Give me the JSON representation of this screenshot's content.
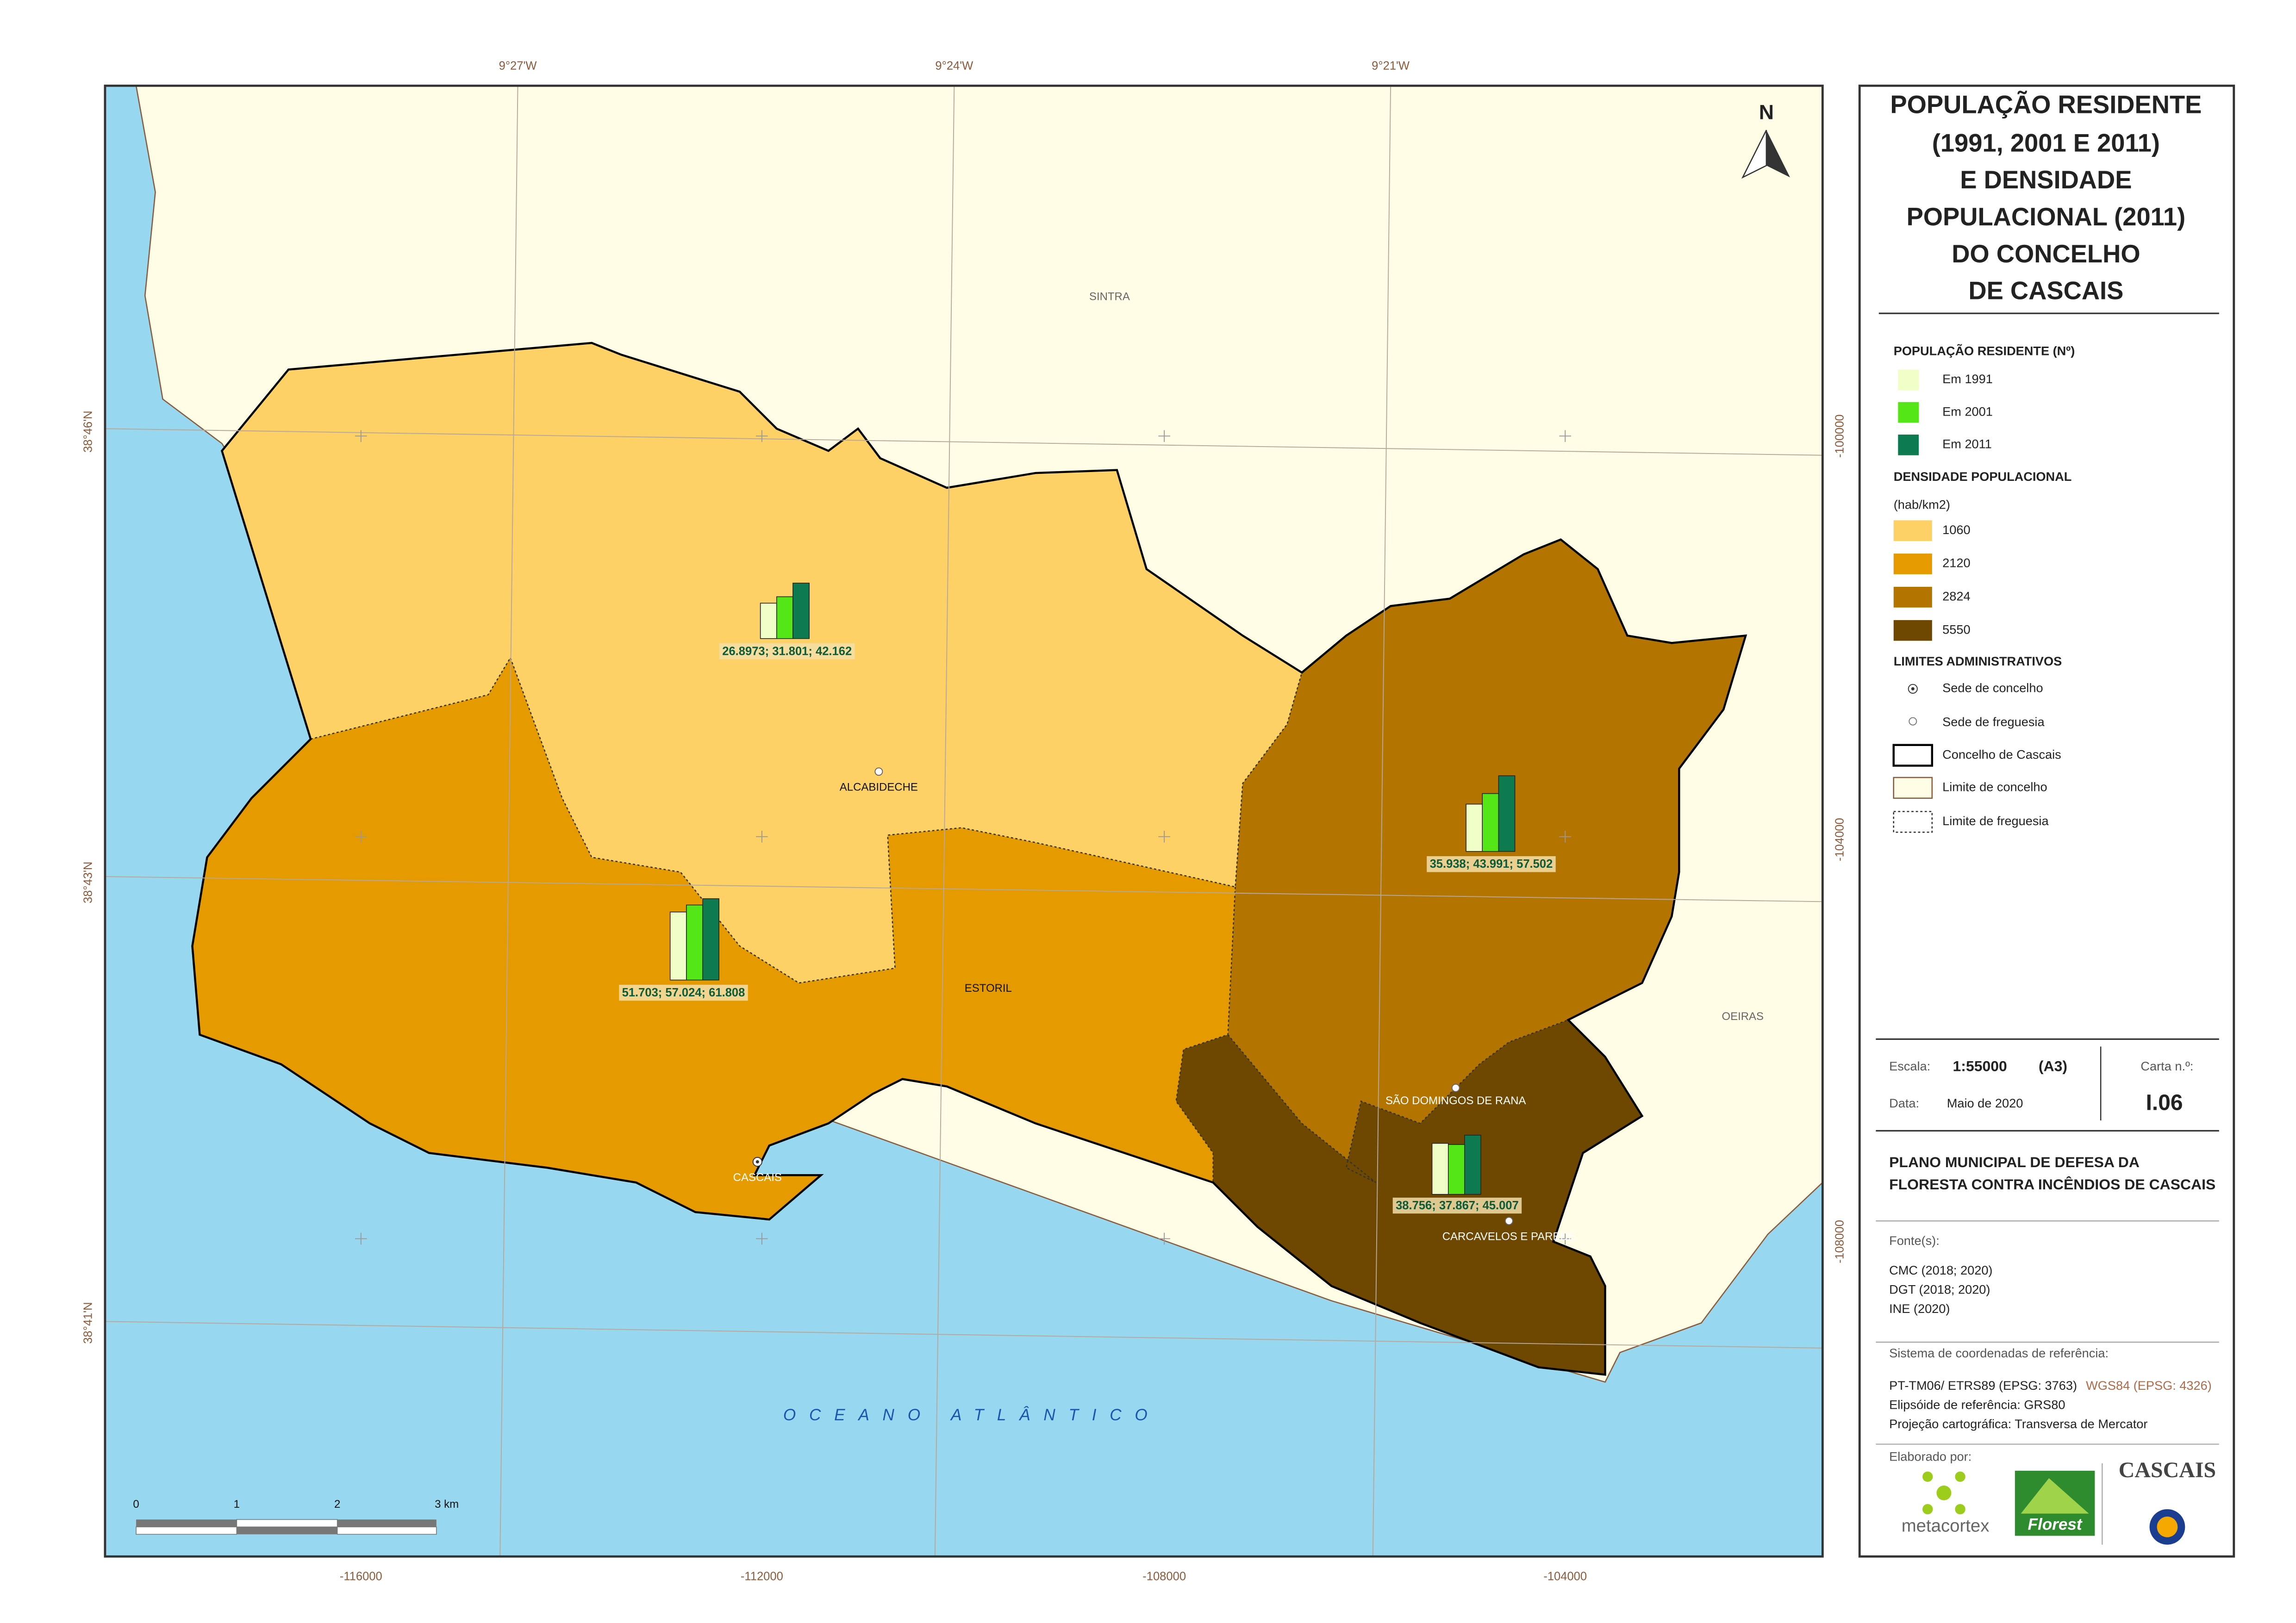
{
  "map": {
    "graticule": {
      "top": [
        "9°27'W",
        "9°24'W",
        "9°21'W"
      ],
      "left": [
        "38°46'N",
        "38°43'N",
        "38°41'N"
      ],
      "bottom": [
        -116000,
        -112000,
        -108000,
        -104000
      ],
      "right": [
        -100000,
        -104000,
        -108000
      ]
    },
    "north": "N",
    "places": {
      "sintra": "SINTRA",
      "oeiras": "OEIRAS",
      "alcabideche": "ALCABIDECHE",
      "estoril": "ESTORIL",
      "cascais": "CASCAIS",
      "sao_domingos": "SÃO DOMINGOS DE RANA",
      "carcavelos": "CARCAVELOS E PAREDE"
    },
    "sea_label": "OCEANO ATLÂNTICO",
    "scale_bar": [
      "0",
      "1",
      "2",
      "3 km"
    ],
    "charts": [
      {
        "values": [
          26.8973,
          31.801,
          42.162
        ],
        "label": "26.8973; 31.801; 42.162"
      },
      {
        "values": [
          51.703,
          57.024,
          61.808
        ],
        "label": "51.703; 57.024; 61.808"
      },
      {
        "values": [
          35.938,
          43.991,
          57.502
        ],
        "label": "35.938; 43.991; 57.502"
      },
      {
        "values": [
          38.756,
          37.867,
          45.007
        ],
        "label": "38.756; 37.867; 45.007"
      }
    ]
  },
  "legend": {
    "title": [
      "POPULAÇÃO RESIDENTE",
      "(1991, 2001 E 2011)",
      "E DENSIDADE",
      "POPULACIONAL (2011)",
      "DO CONCELHO",
      "DE CASCAIS"
    ],
    "population": {
      "heading": "POPULAÇÃO RESIDENTE (Nº)",
      "series": [
        {
          "name": "Em 1991",
          "color": "#f0ffc8"
        },
        {
          "name": "Em 2001",
          "color": "#55e617"
        },
        {
          "name": "Em 2011",
          "color": "#0d7a4f"
        }
      ]
    },
    "density": {
      "heading": "DENSIDADE POPULACIONAL",
      "unit": "(hab/km2)",
      "classes": [
        {
          "value": 1060,
          "color": "#fdd166"
        },
        {
          "value": 2120,
          "color": "#e59a00"
        },
        {
          "value": 2824,
          "color": "#b47400"
        },
        {
          "value": 5550,
          "color": "#6f4800"
        }
      ]
    },
    "limits": {
      "heading": "LIMITES ADMINISTRATIVOS",
      "items": [
        "Sede de concelho",
        "Sede de freguesia",
        "Concelho de Cascais",
        "Limite de concelho",
        "Limite de freguesia"
      ]
    }
  },
  "info": {
    "scale_label": "Escala:",
    "scale": "1:55000",
    "paper": "(A3)",
    "sheet_label": "Carta n.º:",
    "date_label": "Data:",
    "date": "Maio de 2020",
    "sheet": "I.06",
    "plan": [
      "PLANO MUNICIPAL DE DEFESA DA",
      "FLORESTA CONTRA INCÊNDIOS DE CASCAIS"
    ],
    "sources_label": "Fonte(s):",
    "sources": [
      "CMC (2018; 2020)",
      "DGT (2018; 2020)",
      "INE (2020)"
    ],
    "crs_label": "Sistema de coordenadas de referência:",
    "crs": "PT-TM06/ ETRS89 (EPSG: 3763)",
    "crs_alt": "WGS84 (EPSG: 4326)",
    "ellipsoid": "Elipsóide de referência: GRS80",
    "projection": "Projeção cartográfica: Transversa de Mercator",
    "made_by": "Elaborado por:",
    "logos": [
      "metacortex",
      "Florest",
      "CASCAIS"
    ]
  }
}
